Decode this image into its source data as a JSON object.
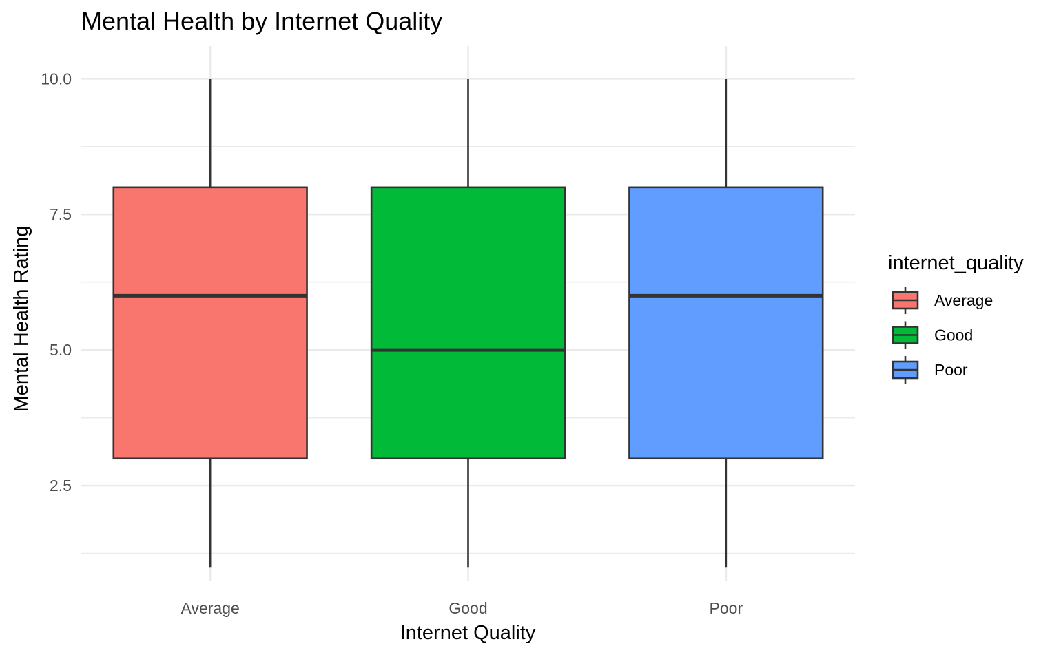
{
  "chart_data": {
    "type": "boxplot",
    "title": "Mental Health by Internet Quality",
    "xlabel": "Internet Quality",
    "ylabel": "Mental Health Rating",
    "categories": [
      "Average",
      "Good",
      "Poor"
    ],
    "ylim": [
      0.75,
      10.6
    ],
    "yticks": [
      2.5,
      5.0,
      7.5,
      10.0
    ],
    "ytick_labels": [
      "2.5",
      "5.0",
      "7.5",
      "10.0"
    ],
    "grid": true,
    "boxes": [
      {
        "category": "Average",
        "min": 1,
        "q1": 3,
        "median": 6,
        "q3": 8,
        "max": 10,
        "color": "#F8766D"
      },
      {
        "category": "Good",
        "min": 1,
        "q1": 3,
        "median": 5,
        "q3": 8,
        "max": 10,
        "color": "#00BA38"
      },
      {
        "category": "Poor",
        "min": 1,
        "q1": 3,
        "median": 6,
        "q3": 8,
        "max": 10,
        "color": "#619CFF"
      }
    ],
    "legend": {
      "title": "internet_quality",
      "position": "right",
      "items": [
        {
          "label": "Average",
          "color": "#F8766D"
        },
        {
          "label": "Good",
          "color": "#00BA38"
        },
        {
          "label": "Poor",
          "color": "#619CFF"
        }
      ]
    }
  }
}
